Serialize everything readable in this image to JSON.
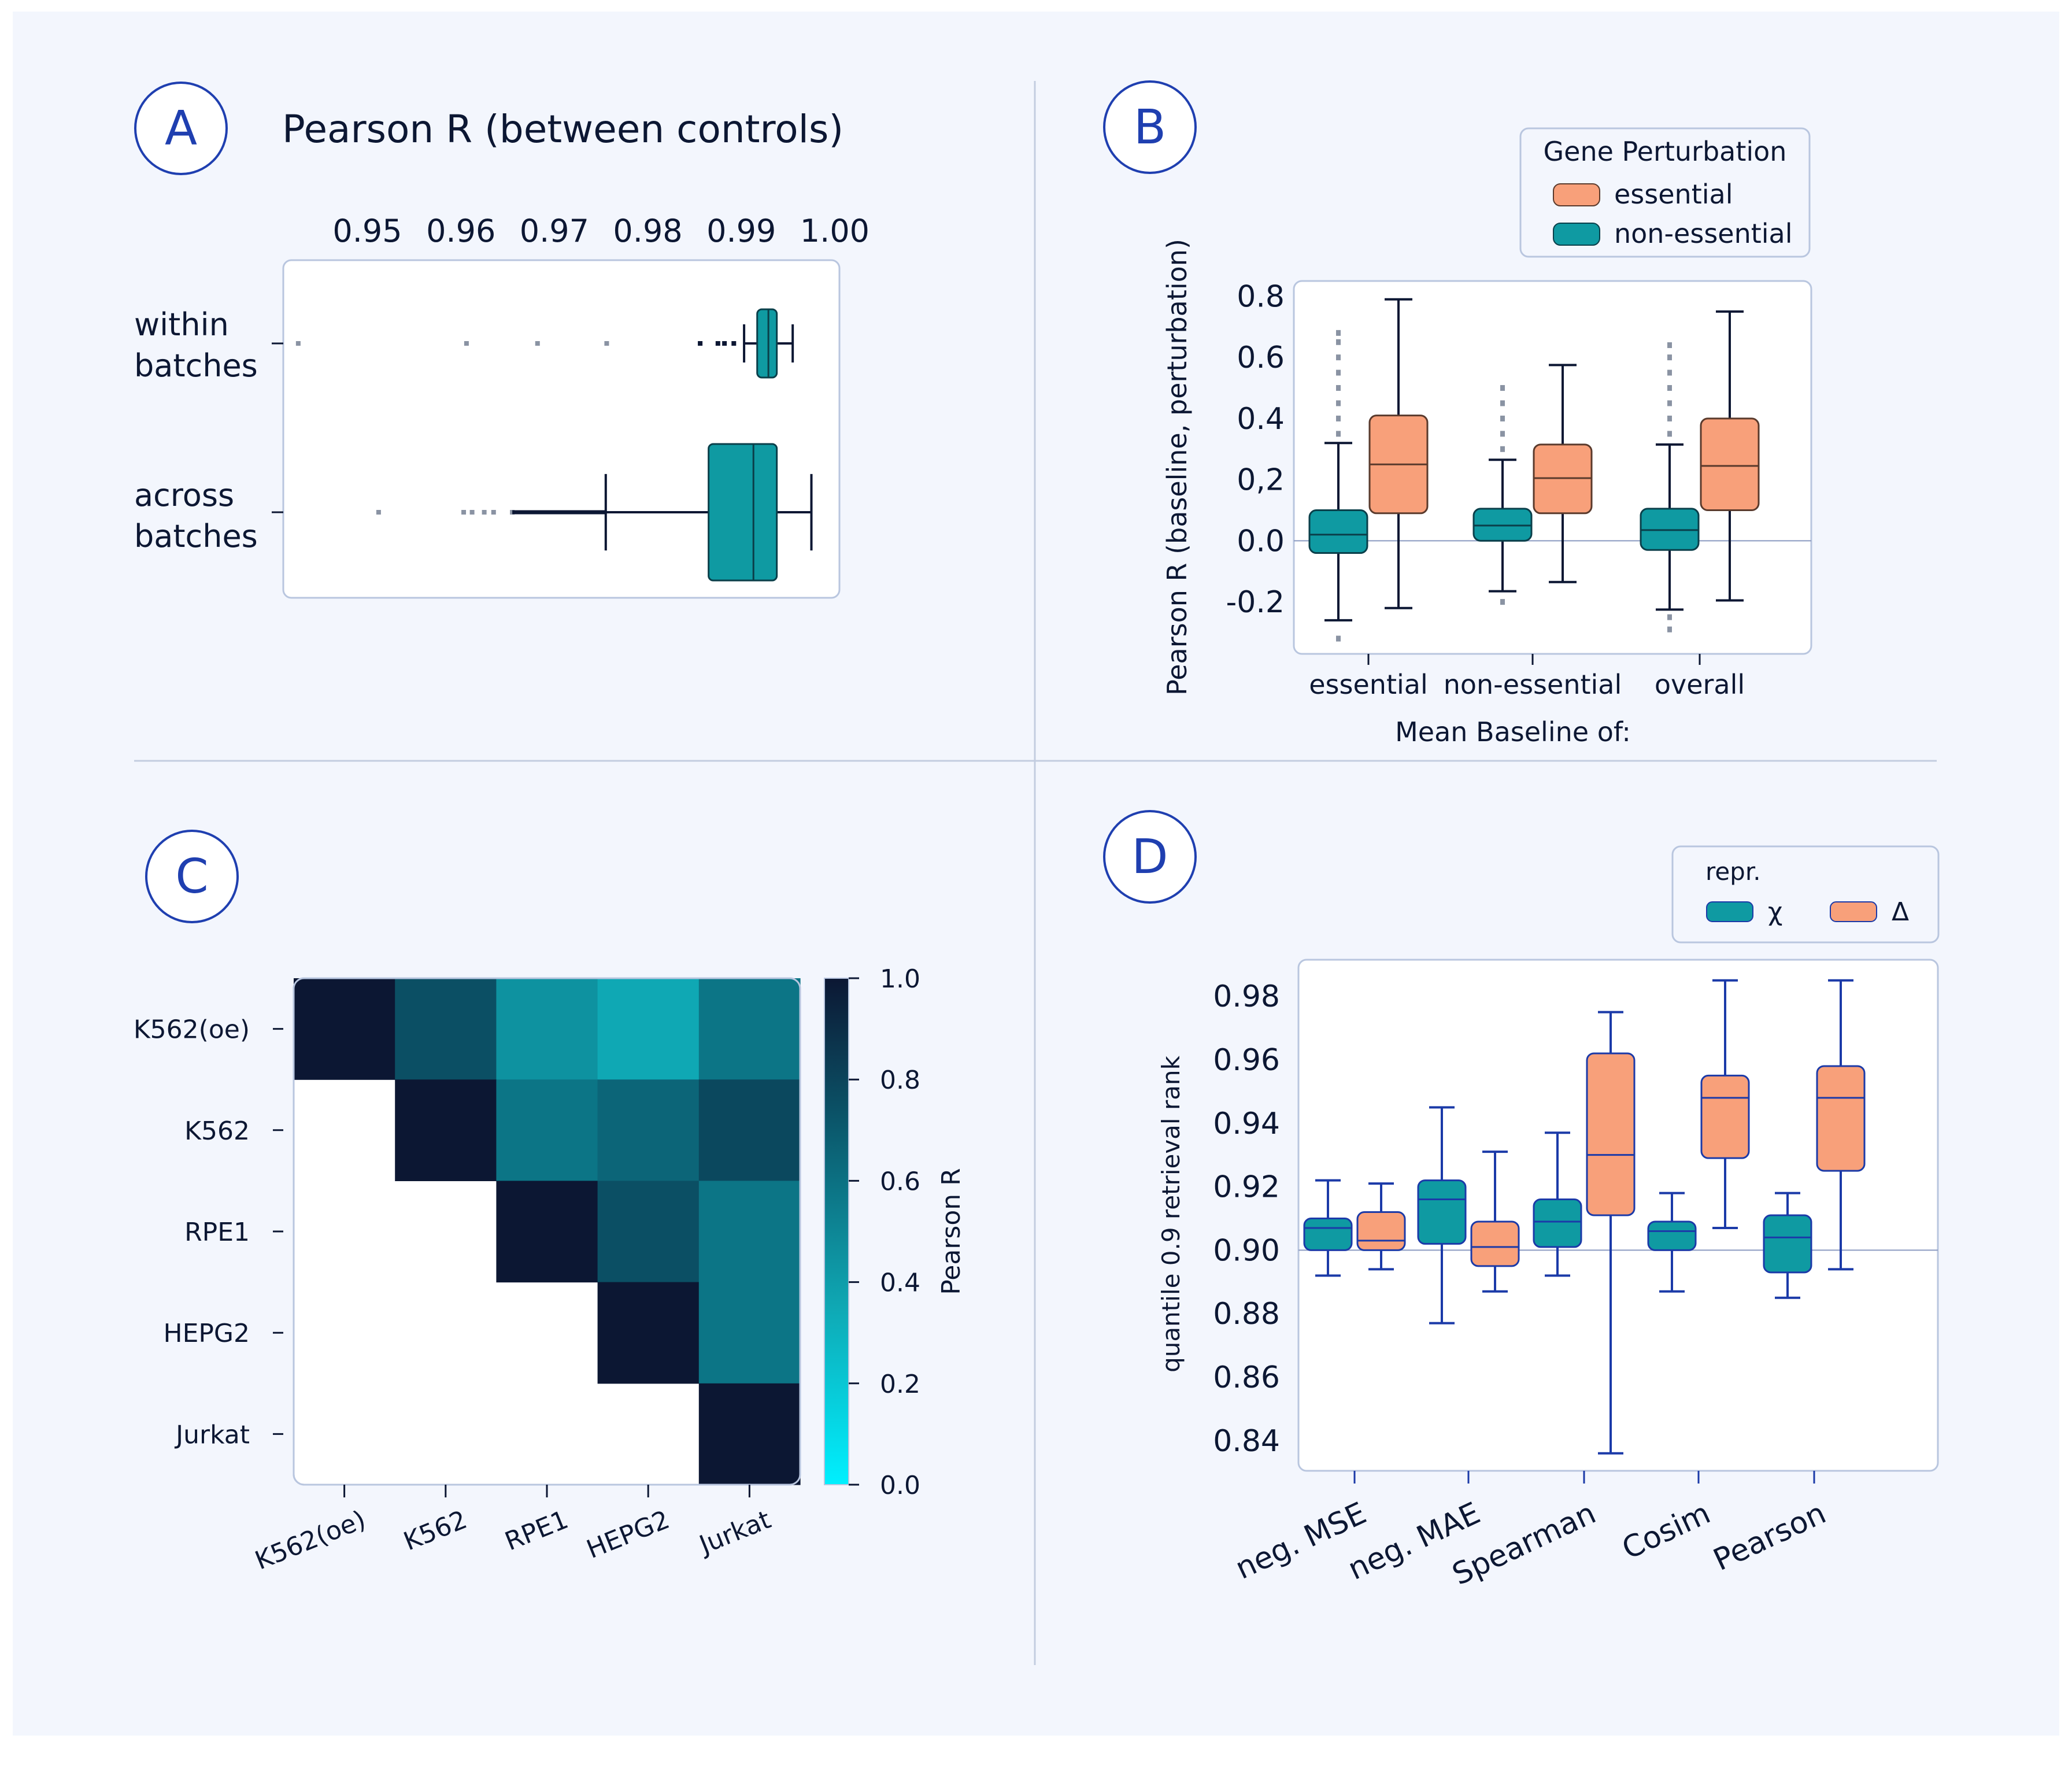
{
  "colors": {
    "background": "#f3f6fd",
    "panel_border": "#b9c6df",
    "divider": "#c3cde0",
    "teal": "#0f9aa2",
    "teal_edge": "#0a3f4a",
    "orange": "#f8a07a",
    "orange_edge": "#5a3a2c",
    "navy": "#0c1733",
    "blue_line": "#1b3aa8",
    "label_circle": "#1f3fb0",
    "outlier": "#8a93a3"
  },
  "panel_labels": [
    "A",
    "B",
    "C",
    "D"
  ],
  "chart_data": [
    {
      "id": "A",
      "type": "box",
      "orientation": "horizontal",
      "title": "Pearson R (between controls)",
      "xticks": [
        "0.95",
        "0.96",
        "0.97",
        "0.98",
        "0.99",
        "1.00"
      ],
      "xlim": [
        0.941,
        1.0005
      ],
      "groups": [
        {
          "label": [
            "within",
            "batches"
          ],
          "q1": 0.9917,
          "median": 0.9929,
          "q3": 0.9938,
          "whisker_low": 0.9903,
          "whisker_high": 0.9955,
          "outliers": [
            0.9426,
            0.9606,
            0.9682,
            0.9756,
            0.9856,
            0.9875,
            0.9882,
            0.9892
          ]
        },
        {
          "label": [
            "across",
            "batches"
          ],
          "q1": 0.9865,
          "median": 0.9913,
          "q3": 0.9938,
          "whisker_low": 0.9755,
          "whisker_high": 0.9975,
          "outliers": [
            0.9512,
            0.9603,
            0.9612,
            0.9625,
            0.9635,
            0.9655
          ]
        }
      ]
    },
    {
      "id": "B",
      "type": "box",
      "xlabel": "Mean Baseline of:",
      "ylabel": "Pearson R (baseline, perturbation)",
      "categories": [
        "essential",
        "non-essential",
        "overall"
      ],
      "yticks": [
        "0.8",
        "0.6",
        "0.4",
        "0,2",
        "0.0",
        "-0.2"
      ],
      "ylim": [
        -0.37,
        0.85
      ],
      "legend": {
        "title": "Gene Perturbation",
        "entries": [
          "essential",
          "non-essential"
        ]
      },
      "series": [
        {
          "name": "non-essential",
          "color": "teal",
          "boxes": [
            {
              "q1": -0.04,
              "median": 0.02,
              "q3": 0.1,
              "whisker_low": -0.26,
              "whisker_high": 0.32,
              "outliers": [
                -0.32,
                0.35,
                0.4,
                0.45,
                0.5,
                0.55,
                0.6,
                0.65,
                0.68
              ]
            },
            {
              "q1": 0.0,
              "median": 0.05,
              "q3": 0.105,
              "whisker_low": -0.165,
              "whisker_high": 0.265,
              "outliers": [
                -0.2,
                0.3,
                0.35,
                0.4,
                0.45,
                0.5
              ]
            },
            {
              "q1": -0.03,
              "median": 0.035,
              "q3": 0.105,
              "whisker_low": -0.225,
              "whisker_high": 0.315,
              "outliers": [
                -0.25,
                -0.29,
                0.35,
                0.4,
                0.45,
                0.5,
                0.55,
                0.6,
                0.64
              ]
            }
          ]
        },
        {
          "name": "essential",
          "color": "orange",
          "boxes": [
            {
              "q1": 0.09,
              "median": 0.25,
              "q3": 0.41,
              "whisker_low": -0.22,
              "whisker_high": 0.79,
              "outliers": []
            },
            {
              "q1": 0.09,
              "median": 0.205,
              "q3": 0.315,
              "whisker_low": -0.135,
              "whisker_high": 0.575,
              "outliers": []
            },
            {
              "q1": 0.1,
              "median": 0.245,
              "q3": 0.4,
              "whisker_low": -0.195,
              "whisker_high": 0.75,
              "outliers": []
            }
          ]
        }
      ]
    },
    {
      "id": "C",
      "type": "heatmap",
      "labels": [
        "K562(oe)",
        "K562",
        "RPE1",
        "HEPG2",
        "Jurkat"
      ],
      "values": [
        [
          1.0,
          0.75,
          0.45,
          0.35,
          0.58
        ],
        [
          null,
          1.0,
          0.58,
          0.65,
          0.78
        ],
        [
          null,
          null,
          1.0,
          0.75,
          0.58
        ],
        [
          null,
          null,
          null,
          1.0,
          0.58
        ],
        [
          null,
          null,
          null,
          null,
          1.0
        ]
      ],
      "colorbar": {
        "label": "Pearson R",
        "ticks": [
          "1.0",
          "0.8",
          "0.6",
          "0.4",
          "0.2",
          "0.0"
        ],
        "range": [
          0.0,
          1.0
        ]
      }
    },
    {
      "id": "D",
      "type": "box",
      "ylabel": "quantile 0.9 retrieval rank",
      "categories": [
        "neg. MSE",
        "neg. MAE",
        "Spearman",
        "Cosim",
        "Pearson"
      ],
      "yticks": [
        "0.98",
        "0.96",
        "0.94",
        "0.92",
        "0.90",
        "0.88",
        "0.86",
        "0.84"
      ],
      "ylim": [
        0.8305,
        0.9915
      ],
      "legend": {
        "title": "repr.",
        "entries": [
          "χ",
          "Δ"
        ]
      },
      "series": [
        {
          "name": "χ",
          "color": "teal",
          "boxes": [
            {
              "q1": 0.9,
              "median": 0.907,
              "q3": 0.91,
              "whisker_low": 0.892,
              "whisker_high": 0.922
            },
            {
              "q1": 0.902,
              "median": 0.916,
              "q3": 0.922,
              "whisker_low": 0.877,
              "whisker_high": 0.945
            },
            {
              "q1": 0.901,
              "median": 0.909,
              "q3": 0.916,
              "whisker_low": 0.892,
              "whisker_high": 0.937
            },
            {
              "q1": 0.9,
              "median": 0.906,
              "q3": 0.909,
              "whisker_low": 0.887,
              "whisker_high": 0.918
            },
            {
              "q1": 0.893,
              "median": 0.904,
              "q3": 0.911,
              "whisker_low": 0.885,
              "whisker_high": 0.918
            }
          ]
        },
        {
          "name": "Δ",
          "color": "orange",
          "boxes": [
            {
              "q1": 0.9,
              "median": 0.903,
              "q3": 0.912,
              "whisker_low": 0.894,
              "whisker_high": 0.921
            },
            {
              "q1": 0.895,
              "median": 0.901,
              "q3": 0.909,
              "whisker_low": 0.887,
              "whisker_high": 0.931
            },
            {
              "q1": 0.911,
              "median": 0.93,
              "q3": 0.962,
              "whisker_low": 0.836,
              "whisker_high": 0.975
            },
            {
              "q1": 0.929,
              "median": 0.948,
              "q3": 0.955,
              "whisker_low": 0.907,
              "whisker_high": 0.985
            },
            {
              "q1": 0.925,
              "median": 0.948,
              "q3": 0.958,
              "whisker_low": 0.894,
              "whisker_high": 0.985
            }
          ]
        }
      ]
    }
  ]
}
